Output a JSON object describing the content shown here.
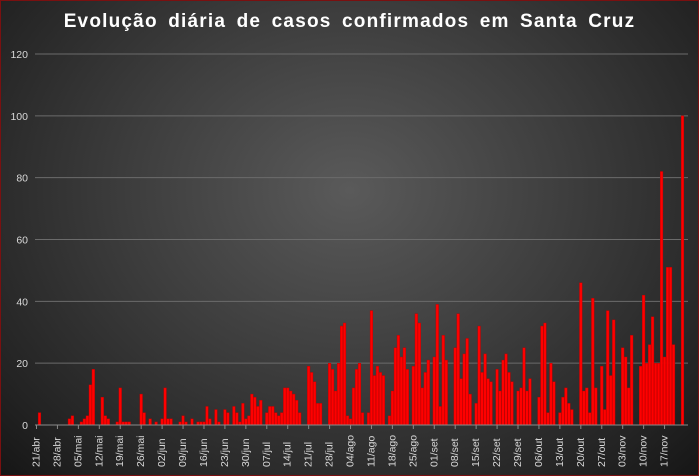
{
  "chart_data": {
    "type": "bar",
    "title": "Evolução  diária  de  casos  confirmados  em  Santa  Cruz",
    "xlabel": "",
    "ylabel": "",
    "ylim": [
      0,
      120
    ],
    "yticks": [
      0,
      20,
      40,
      60,
      80,
      100,
      120
    ],
    "grid": true,
    "legend": "none",
    "bar_color": "#ff0000",
    "x_start": "2020-04-21",
    "x_end": "2020-11-24",
    "xtick_labels": [
      "21/abr",
      "28/abr",
      "05/mai",
      "12/mai",
      "19/mai",
      "26/mai",
      "02/jun",
      "09/jun",
      "16/jun",
      "23/jun",
      "30/jun",
      "07/jul",
      "14/jul",
      "21/jul",
      "28/jul",
      "04/ago",
      "11/ago",
      "18/ago",
      "25/ago",
      "01/set",
      "08/set",
      "15/set",
      "22/set",
      "29/set",
      "06/out",
      "13/out",
      "20/out",
      "27/out",
      "03/nov",
      "10/nov",
      "17/nov"
    ],
    "values": [
      0,
      4,
      0,
      0,
      0,
      0,
      0,
      0,
      0,
      0,
      0,
      2,
      3,
      0,
      0,
      1,
      2,
      3,
      13,
      18,
      0,
      0,
      9,
      3,
      2,
      0,
      0,
      1,
      12,
      1,
      1,
      1,
      0,
      0,
      0,
      10,
      4,
      0,
      2,
      0,
      1,
      0,
      2,
      12,
      2,
      2,
      0,
      0,
      1,
      3,
      1,
      0,
      2,
      0,
      1,
      1,
      1,
      6,
      2,
      0,
      5,
      1,
      0,
      5,
      4,
      0,
      6,
      4,
      1,
      7,
      2,
      3,
      10,
      9,
      6,
      8,
      0,
      4,
      6,
      6,
      4,
      3,
      4,
      12,
      12,
      11,
      10,
      8,
      4,
      0,
      0,
      19,
      17,
      14,
      7,
      7,
      0,
      0,
      20,
      18,
      11,
      20,
      32,
      33,
      3,
      2,
      12,
      18,
      20,
      4,
      0,
      4,
      37,
      16,
      19,
      17,
      16,
      0,
      3,
      11,
      25,
      29,
      22,
      25,
      18,
      0,
      19,
      36,
      33,
      12,
      17,
      21,
      0,
      22,
      39,
      6,
      29,
      21,
      0,
      0,
      25,
      36,
      15,
      23,
      28,
      10,
      0,
      7,
      32,
      17,
      23,
      15,
      14,
      0,
      18,
      11,
      21,
      23,
      17,
      14,
      0,
      11,
      12,
      25,
      11,
      15,
      0,
      0,
      9,
      32,
      33,
      4,
      20,
      14,
      0,
      4,
      9,
      12,
      7,
      5,
      0,
      0,
      46,
      11,
      12,
      4,
      41,
      12,
      0,
      19,
      5,
      37,
      16,
      34,
      0,
      0,
      25,
      22,
      12,
      29,
      0,
      0,
      19,
      42,
      20,
      26,
      35,
      20,
      20,
      82,
      22,
      51,
      51,
      26,
      0,
      0,
      100
    ]
  }
}
